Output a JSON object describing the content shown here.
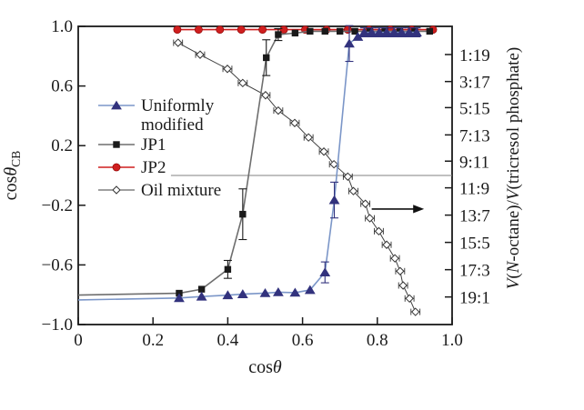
{
  "figure": {
    "background": "#ffffff",
    "frame_color": "#1a1a1a",
    "xlabel_parts": [
      {
        "t": "cos"
      },
      {
        "t": "θ",
        "i": 1
      }
    ],
    "ylabel_left_parts": [
      {
        "t": "cos"
      },
      {
        "t": "θ",
        "i": 1
      },
      {
        "t": "CB",
        "sub": 1
      }
    ],
    "ylabel_right_parts": [
      {
        "t": "V",
        "i": 1
      },
      {
        "t": "("
      },
      {
        "t": "N",
        "i": 1
      },
      {
        "t": "-octane)/"
      },
      {
        "t": "V",
        "i": 1
      },
      {
        "t": "(tricresol phosphate)"
      }
    ]
  },
  "chart_data": {
    "type": "line",
    "title": "",
    "xlabel": "cosθ",
    "ylabel_left": "cosθCB",
    "ylabel_right": "V(N-octane)/V(tricresol phosphate)",
    "xlim": [
      0,
      1.0
    ],
    "ylim": [
      -1.0,
      1.0
    ],
    "grid": false,
    "legend_position": "upper-left-inside",
    "x_ticks": {
      "values": [
        0,
        0.2,
        0.4,
        0.6,
        0.8,
        1.0
      ],
      "labels": [
        "0",
        "0.2",
        "0.4",
        "0.6",
        "0.8",
        "1.0"
      ]
    },
    "y_left_ticks": {
      "values": [
        1.0,
        0.6,
        0.2,
        -0.2,
        -0.6,
        -1.0
      ],
      "labels": [
        "1.0",
        "0.6",
        "0.2",
        "−0.2",
        "−0.6",
        "−1.0"
      ]
    },
    "y_right_ticks": {
      "values": [
        0.811,
        0.63,
        0.455,
        0.272,
        0.096,
        -0.083,
        -0.266,
        -0.449,
        -0.632,
        -0.815
      ],
      "labels": [
        "1:19",
        "3:17",
        "5:15",
        "7:13",
        "9:11",
        "11:9",
        "13:7",
        "15:5",
        "17:3",
        "19:1"
      ]
    },
    "zero_line": {
      "y": 0,
      "x_start": 0.248,
      "x_end": 1.0,
      "color": "#808080"
    },
    "arrow": {
      "y": -0.225,
      "x_start": 0.785,
      "x_end": 0.925,
      "color": "#111111"
    },
    "series": [
      {
        "name": "oil-mixture",
        "label": "Oil mixture",
        "marker": "diamond-open",
        "marker_color": "#ffffff",
        "marker_stroke": "#333333",
        "line_color": "#404040",
        "xerr": 0.012,
        "points": [
          [
            0.267,
            0.89
          ],
          [
            0.326,
            0.81
          ],
          [
            0.399,
            0.715
          ],
          [
            0.44,
            0.62
          ],
          [
            0.501,
            0.538
          ],
          [
            0.535,
            0.435
          ],
          [
            0.579,
            0.352
          ],
          [
            0.616,
            0.255
          ],
          [
            0.657,
            0.16
          ],
          [
            0.684,
            0.075
          ],
          [
            0.721,
            -0.008
          ],
          [
            0.736,
            -0.105
          ],
          [
            0.768,
            -0.19
          ],
          [
            0.78,
            -0.287
          ],
          [
            0.804,
            -0.374
          ],
          [
            0.825,
            -0.465
          ],
          [
            0.847,
            -0.556
          ],
          [
            0.861,
            -0.642
          ],
          [
            0.869,
            -0.738
          ],
          [
            0.886,
            -0.825
          ],
          [
            0.902,
            -0.915
          ]
        ]
      },
      {
        "name": "jp2",
        "label": "JP2",
        "marker": "circle",
        "marker_color": "#cf1f1f",
        "marker_stroke": "#8b0000",
        "line_color": "#cf1f1f",
        "points": [
          [
            0.265,
            0.978
          ],
          [
            0.322,
            0.978
          ],
          [
            0.379,
            0.978
          ],
          [
            0.436,
            0.978
          ],
          [
            0.493,
            0.978
          ],
          [
            0.55,
            0.978
          ],
          [
            0.607,
            0.978
          ],
          [
            0.664,
            0.978
          ],
          [
            0.721,
            0.978
          ],
          [
            0.778,
            0.978
          ],
          [
            0.835,
            0.978
          ],
          [
            0.892,
            0.978
          ],
          [
            0.949,
            0.978
          ]
        ]
      },
      {
        "name": "jp1",
        "label": "JP1",
        "marker": "square",
        "marker_color": "#1a1a1a",
        "marker_stroke": "#1a1a1a",
        "line_color": "#6e6e6e",
        "line_start": [
          0,
          -0.802
        ],
        "points": [
          [
            0.27,
            -0.79
          ],
          [
            0.33,
            -0.763
          ],
          [
            0.4,
            -0.63,
            0.06
          ],
          [
            0.44,
            -0.26,
            0.17
          ],
          [
            0.503,
            0.79,
            0.12
          ],
          [
            0.535,
            0.945,
            0.04
          ],
          [
            0.58,
            0.955
          ],
          [
            0.62,
            0.967
          ],
          [
            0.66,
            0.967
          ],
          [
            0.7,
            0.967
          ],
          [
            0.74,
            0.967
          ],
          [
            0.78,
            0.967
          ],
          [
            0.82,
            0.967
          ],
          [
            0.86,
            0.967
          ],
          [
            0.9,
            0.967
          ],
          [
            0.94,
            0.967
          ]
        ]
      },
      {
        "name": "uniformly-modified",
        "label": "Uniformly modified",
        "marker": "triangle",
        "marker_color": "#32327d",
        "marker_stroke": "#32327d",
        "line_color": "#7b96c8",
        "line_start": [
          0,
          -0.835
        ],
        "points": [
          [
            0.27,
            -0.822
          ],
          [
            0.33,
            -0.812
          ],
          [
            0.4,
            -0.803
          ],
          [
            0.44,
            -0.796
          ],
          [
            0.5,
            -0.789
          ],
          [
            0.535,
            -0.783
          ],
          [
            0.58,
            -0.786
          ],
          [
            0.62,
            -0.768
          ],
          [
            0.66,
            -0.65,
            0.07
          ],
          [
            0.685,
            -0.165,
            0.12
          ],
          [
            0.725,
            0.885,
            0.12
          ],
          [
            0.748,
            0.93
          ],
          [
            0.765,
            0.96,
            0.03
          ],
          [
            0.785,
            0.96,
            0.03
          ],
          [
            0.805,
            0.96,
            0.03
          ],
          [
            0.825,
            0.96,
            0.03
          ],
          [
            0.845,
            0.96,
            0.03
          ],
          [
            0.865,
            0.96,
            0.03
          ],
          [
            0.885,
            0.96,
            0.03
          ],
          [
            0.905,
            0.96,
            0.03
          ]
        ]
      }
    ]
  },
  "legend": {
    "items": [
      {
        "series": "uniformly-modified",
        "lines": [
          "Uniformly",
          "modified"
        ]
      },
      {
        "series": "jp1",
        "lines": [
          "JP1"
        ]
      },
      {
        "series": "jp2",
        "lines": [
          "JP2"
        ]
      },
      {
        "series": "oil-mixture",
        "lines": [
          "Oil mixture"
        ]
      }
    ]
  }
}
